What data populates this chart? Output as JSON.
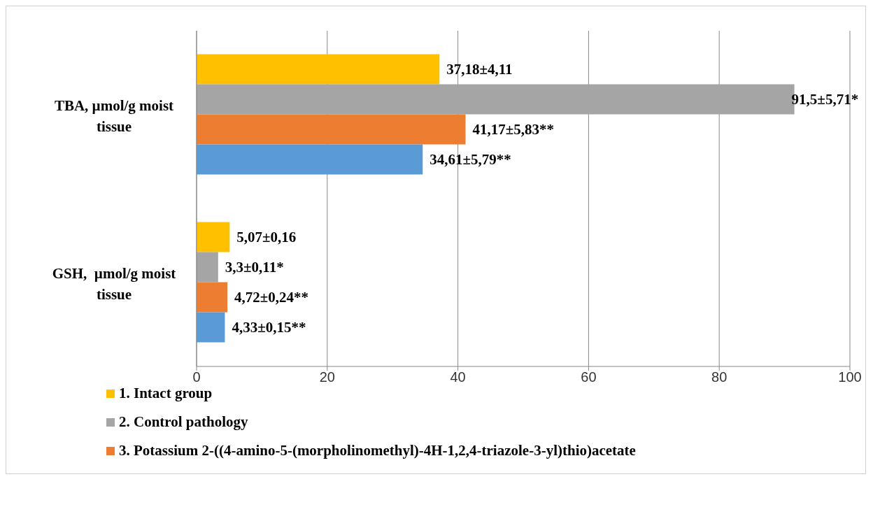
{
  "chart_data": {
    "type": "bar",
    "orientation": "horizontal",
    "categories": [
      "TBA, µmol/g moist tissue",
      "GSH,  µmol/g moist tissue"
    ],
    "series": [
      {
        "name": "1. Intact group",
        "color": "#ffc000",
        "values": [
          37.18,
          5.07
        ],
        "value_labels": [
          "37,18±4,11",
          "5,07±0,16"
        ]
      },
      {
        "name": "2. Control pathology",
        "color": "#a5a5a5",
        "values": [
          91.5,
          3.3
        ],
        "value_labels": [
          "91,5±5,71*",
          "3,3±0,11*"
        ]
      },
      {
        "name": "3. Potassium 2-((4-amino-5-(morpholinomethyl)-4H-1,2,4-triazole-3-yl)thio)acetate",
        "color": "#ed7d31",
        "values": [
          41.17,
          4.72
        ],
        "value_labels": [
          "41,17±5,83**",
          "4,72±0,24**"
        ]
      },
      {
        "color": "#5b9bd5",
        "values": [
          34.61,
          4.33
        ],
        "value_labels": [
          "34,61±5,79**",
          "4,33±0,15**"
        ]
      }
    ],
    "xlim": [
      0,
      100
    ],
    "xticks": [
      0,
      20,
      40,
      60,
      80,
      100
    ],
    "grid": "x",
    "legend": "bottom"
  }
}
